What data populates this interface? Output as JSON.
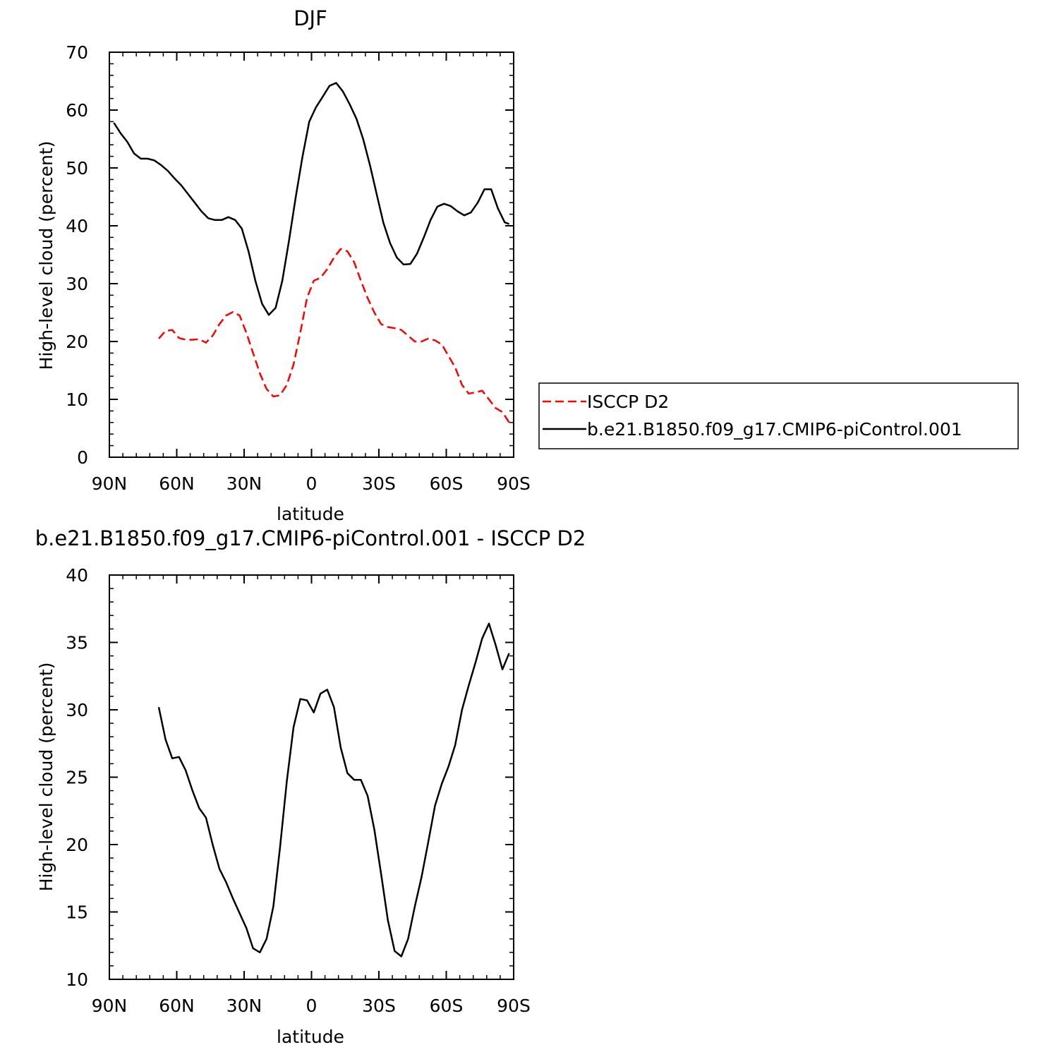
{
  "chart_data": [
    {
      "type": "line",
      "title": "DJF",
      "xlabel": "latitude",
      "ylabel": "High-level cloud (percent)",
      "xlim": [
        90,
        -90
      ],
      "ylim": [
        0,
        70
      ],
      "x_ticks": [
        90,
        60,
        30,
        0,
        -30,
        -60,
        -90
      ],
      "x_tick_labels": [
        "90N",
        "60N",
        "30N",
        "0",
        "30S",
        "60S",
        "90S"
      ],
      "y_ticks": [
        0,
        10,
        20,
        30,
        40,
        50,
        60,
        70
      ],
      "y_tick_labels": [
        "0",
        "10",
        "20",
        "30",
        "40",
        "50",
        "60",
        "70"
      ],
      "legend": {
        "placement": "right"
      },
      "series": [
        {
          "name": "ISCCP D2",
          "color": "#ff0000",
          "dash": "dashed",
          "x": [
            68,
            65,
            62,
            59,
            56,
            53,
            50,
            47,
            44,
            41,
            38,
            35,
            32,
            29,
            26,
            23,
            20,
            17,
            14,
            11,
            8,
            5,
            2,
            -1,
            -4,
            -7,
            -10,
            -13,
            -16,
            -19,
            -22,
            -25,
            -28,
            -31,
            -34,
            -37,
            -40,
            -43,
            -46,
            -49,
            -52,
            -55,
            -58,
            -61,
            -64,
            -67,
            -70,
            -73,
            -76,
            -79,
            -82,
            -85,
            -88
          ],
          "y": [
            20.5,
            21.8,
            22.0,
            20.6,
            20.3,
            20.3,
            20.4,
            19.8,
            21.0,
            23.0,
            24.5,
            25.1,
            24.5,
            21.5,
            18.0,
            14.5,
            11.8,
            10.5,
            10.7,
            12.5,
            16.0,
            21.5,
            27.5,
            30.5,
            31.0,
            32.5,
            34.5,
            36.0,
            35.6,
            33.7,
            30.5,
            27.5,
            25.0,
            23.0,
            22.5,
            22.3,
            22.0,
            21.0,
            20.0,
            20.0,
            20.5,
            20.2,
            19.5,
            17.5,
            15.5,
            12.5,
            11.0,
            11.2,
            11.5,
            10.0,
            8.5,
            7.8,
            6.0
          ]
        },
        {
          "name": "b.e21.B1850.f09_g17.CMIP6-piControl.001",
          "color": "#000000",
          "dash": "solid",
          "x": [
            88,
            85,
            82,
            79,
            76,
            73,
            70,
            67,
            64,
            61,
            58,
            55,
            52,
            49,
            46,
            43,
            40,
            37,
            34,
            31,
            28,
            25,
            22,
            19,
            16,
            13,
            10,
            7,
            4,
            1,
            -2,
            -5,
            -8,
            -11,
            -14,
            -17,
            -20,
            -23,
            -26,
            -29,
            -32,
            -35,
            -38,
            -41,
            -44,
            -47,
            -50,
            -53,
            -56,
            -59,
            -62,
            -65,
            -68,
            -71,
            -74,
            -77,
            -80,
            -83,
            -86,
            -88
          ],
          "y": [
            57.8,
            56.0,
            54.5,
            52.5,
            51.6,
            51.6,
            51.3,
            50.5,
            49.5,
            48.2,
            47.0,
            45.5,
            44.0,
            42.5,
            41.3,
            41.0,
            41.0,
            41.5,
            41.0,
            39.5,
            35.5,
            30.5,
            26.5,
            24.6,
            25.8,
            30.5,
            37.5,
            45.0,
            52.0,
            58.0,
            60.5,
            62.3,
            64.2,
            64.7,
            63.2,
            61.0,
            58.5,
            55.0,
            50.5,
            45.5,
            40.5,
            37.0,
            34.5,
            33.3,
            33.4,
            35.2,
            38.0,
            41.0,
            43.3,
            43.8,
            43.4,
            42.5,
            41.8,
            42.3,
            44.0,
            46.3,
            46.3,
            43.0,
            40.6,
            40.3
          ]
        }
      ]
    },
    {
      "type": "line",
      "title": "b.e21.B1850.f09_g17.CMIP6-piControl.001 - ISCCP D2",
      "xlabel": "latitude",
      "ylabel": "High-level cloud (percent)",
      "xlim": [
        90,
        -90
      ],
      "ylim": [
        10,
        40
      ],
      "x_ticks": [
        90,
        60,
        30,
        0,
        -30,
        -60,
        -90
      ],
      "x_tick_labels": [
        "90N",
        "60N",
        "30N",
        "0",
        "30S",
        "60S",
        "90S"
      ],
      "y_ticks": [
        10,
        15,
        20,
        25,
        30,
        35,
        40
      ],
      "y_tick_labels": [
        "10",
        "15",
        "20",
        "25",
        "30",
        "35",
        "40"
      ],
      "series": [
        {
          "color": "#000000",
          "dash": "solid",
          "x": [
            68,
            65,
            62,
            59,
            56,
            53,
            50,
            47,
            44,
            41,
            38,
            35,
            32,
            29,
            26,
            23,
            20,
            17,
            14,
            11,
            8,
            5,
            2,
            -1,
            -4,
            -7,
            -10,
            -13,
            -16,
            -19,
            -22,
            -25,
            -28,
            -31,
            -34,
            -37,
            -40,
            -43,
            -46,
            -49,
            -52,
            -55,
            -58,
            -61,
            -64,
            -67,
            -70,
            -73,
            -76,
            -79,
            -82,
            -85,
            -88
          ],
          "y": [
            30.2,
            27.8,
            26.4,
            26.5,
            25.5,
            24.0,
            22.7,
            22.0,
            20.0,
            18.2,
            17.2,
            16.0,
            14.9,
            13.8,
            12.3,
            12.0,
            13.0,
            15.4,
            19.8,
            24.7,
            28.7,
            30.8,
            30.7,
            29.8,
            31.2,
            31.5,
            30.2,
            27.2,
            25.3,
            24.8,
            24.8,
            23.6,
            21.1,
            17.8,
            14.4,
            12.1,
            11.7,
            13.0,
            15.4,
            17.6,
            20.2,
            22.9,
            24.5,
            25.8,
            27.4,
            30.0,
            31.8,
            33.5,
            35.3,
            36.4,
            34.8,
            33.0,
            34.2
          ]
        }
      ]
    }
  ]
}
